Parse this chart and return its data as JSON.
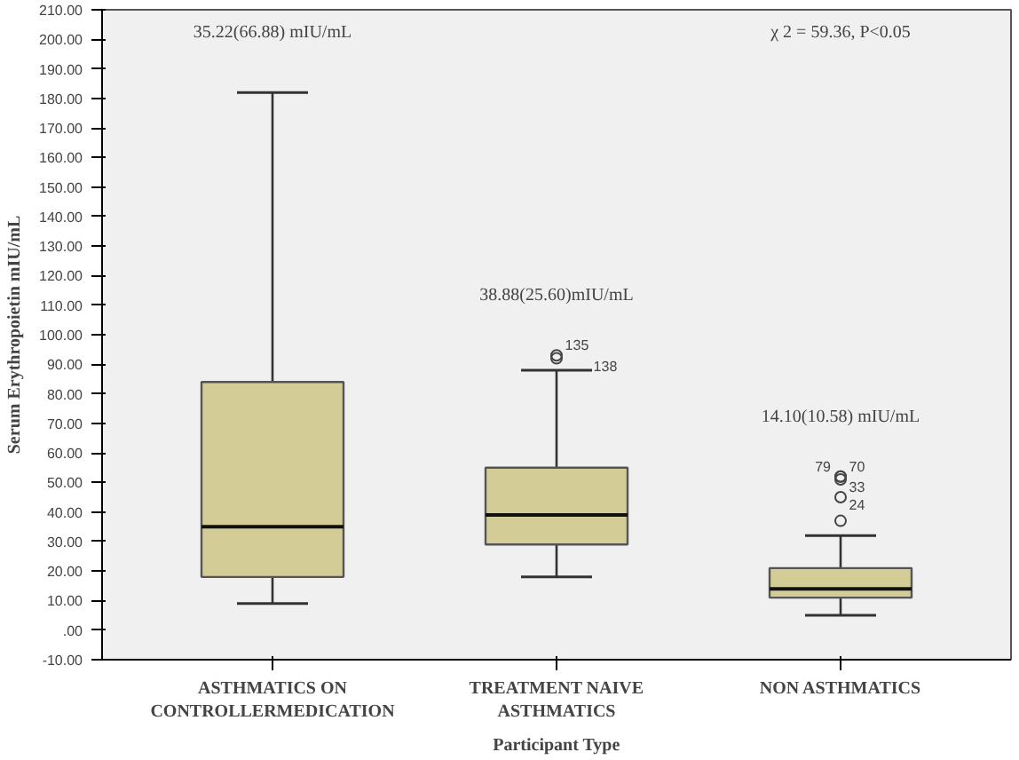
{
  "chart_data": {
    "type": "box",
    "xlabel": "Participant Type",
    "ylabel": "Serum Erythropoietin mIU/mL",
    "categories": [
      "ASTHMATICS ON\nCONTROLLERMEDICATION",
      "TREATMENT NAIVE\nASTHMATICS",
      "NON ASTHMATICS"
    ],
    "color": "#d3cc96",
    "boxes": [
      {
        "low": 9,
        "q1": 18,
        "median": 35,
        "q3": 84,
        "high": 182
      },
      {
        "low": 18,
        "q1": 29,
        "median": 39,
        "q3": 55,
        "high": 88,
        "outliers": [
          93,
          92
        ]
      },
      {
        "low": 5,
        "q1": 11,
        "median": 14,
        "q3": 21,
        "high": 32,
        "outliers": [
          52,
          52,
          51,
          45,
          37
        ]
      }
    ],
    "ylim": [
      -10,
      210
    ],
    "yticks": [
      {
        "value": -10,
        "label": "-10.00"
      },
      {
        "value": 0,
        "label": ".00"
      },
      {
        "value": 10,
        "label": "10.00"
      },
      {
        "value": 20,
        "label": "20.00"
      },
      {
        "value": 30,
        "label": "30.00"
      },
      {
        "value": 40,
        "label": "40.00"
      },
      {
        "value": 50,
        "label": "50.00"
      },
      {
        "value": 60,
        "label": "60.00"
      },
      {
        "value": 70,
        "label": "70.00"
      },
      {
        "value": 80,
        "label": "80.00"
      },
      {
        "value": 90,
        "label": "90.00"
      },
      {
        "value": 100,
        "label": "100.00"
      },
      {
        "value": 110,
        "label": "110.00"
      },
      {
        "value": 120,
        "label": "120.00"
      },
      {
        "value": 130,
        "label": "130.00"
      },
      {
        "value": 140,
        "label": "140.00"
      },
      {
        "value": 150,
        "label": "150.00"
      },
      {
        "value": 160,
        "label": "160.00"
      },
      {
        "value": 170,
        "label": "170.00"
      },
      {
        "value": 180,
        "label": "180.00"
      },
      {
        "value": 190,
        "label": "190.00"
      },
      {
        "value": 200,
        "label": "200.00"
      },
      {
        "value": 210,
        "label": "210.00"
      }
    ],
    "grid": false,
    "annotations": [
      "35.22(66.88) mIU/mL",
      "38.88(25.60)mIU/mL",
      "14.10(10.58) mIU/mL",
      "χ 2 = 59.36, P<0.05",
      "135",
      "138",
      "79",
      "70",
      "33",
      "24"
    ]
  }
}
